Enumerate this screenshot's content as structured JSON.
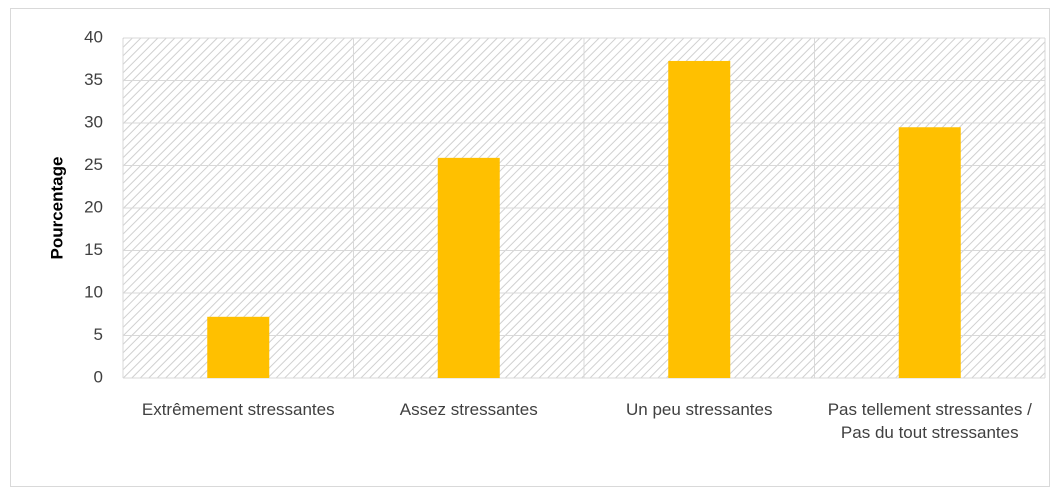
{
  "chart_data": {
    "type": "bar",
    "y_label": "Pourcentage",
    "categories": [
      "Extrêmement stressantes",
      "Assez stressantes",
      "Un peu stressantes",
      "Pas tellement stressantes / Pas du tout stressantes"
    ],
    "values": [
      7.2,
      25.9,
      37.3,
      29.5
    ],
    "color": "#ffc000",
    "ylim": [
      0,
      40
    ],
    "yticks": [
      0,
      5,
      10,
      15,
      20,
      25,
      30,
      35,
      40
    ],
    "grid": true
  }
}
